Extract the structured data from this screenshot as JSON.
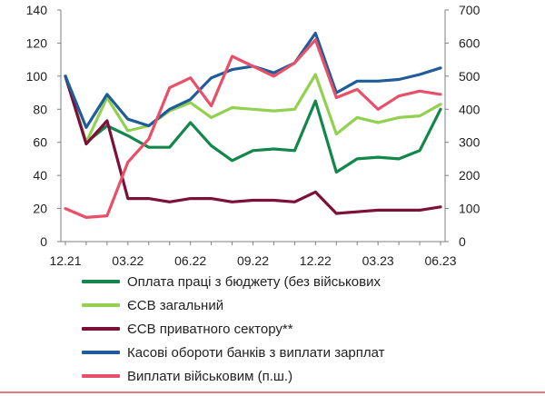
{
  "chart_data": {
    "type": "line",
    "x": [
      "12.21",
      "01.22",
      "02.22",
      "03.22",
      "04.22",
      "05.22",
      "06.22",
      "07.22",
      "08.22",
      "09.22",
      "10.22",
      "11.22",
      "12.22",
      "01.23",
      "02.23",
      "03.23",
      "04.23",
      "05.23",
      "06.23"
    ],
    "x_tick_labels": [
      "12.21",
      "03.22",
      "06.22",
      "09.22",
      "12.22",
      "03.23",
      "06.23"
    ],
    "y_left": {
      "ticks": [
        "0",
        "20",
        "40",
        "60",
        "80",
        "100",
        "120",
        "140"
      ],
      "ylim": [
        0,
        140
      ]
    },
    "y_right": {
      "ticks": [
        "0",
        "100",
        "200",
        "300",
        "400",
        "500",
        "600",
        "700"
      ],
      "ylim": [
        0,
        700
      ]
    },
    "grid": false,
    "legend_position": "bottom",
    "series": [
      {
        "name": "Оплата праці з бюджету (без військових",
        "color": "#13874b",
        "axis": "left",
        "values": [
          100,
          60,
          70,
          64,
          57,
          57,
          72,
          58,
          49,
          55,
          56,
          55,
          85,
          42,
          50,
          51,
          50,
          55,
          80
        ]
      },
      {
        "name": "ЄСВ загальний",
        "color": "#92d050",
        "axis": "left",
        "values": [
          100,
          60,
          87,
          67,
          70,
          79,
          84,
          75,
          81,
          80,
          79,
          80,
          101,
          65,
          75,
          72,
          75,
          76,
          83
        ]
      },
      {
        "name": "ЄСВ приватного сектору**",
        "color": "#7d1038",
        "axis": "left",
        "values": [
          100,
          59,
          73,
          26,
          26,
          24,
          26,
          26,
          24,
          25,
          25,
          24,
          30,
          17,
          18,
          19,
          19,
          19,
          21
        ]
      },
      {
        "name": "Касові обороти банків з виплати зарплат",
        "color": "#1f5c99",
        "axis": "left",
        "values": [
          100,
          69,
          89,
          74,
          70,
          80,
          86,
          99,
          104,
          106,
          102,
          108,
          126,
          90,
          97,
          97,
          98,
          101,
          105
        ]
      },
      {
        "name": "Виплати військовим (п.ш.)",
        "color": "#e8506a",
        "axis": "right",
        "values": [
          100,
          73,
          78,
          240,
          310,
          465,
          495,
          410,
          560,
          530,
          500,
          540,
          610,
          435,
          460,
          400,
          440,
          455,
          445
        ]
      }
    ]
  }
}
